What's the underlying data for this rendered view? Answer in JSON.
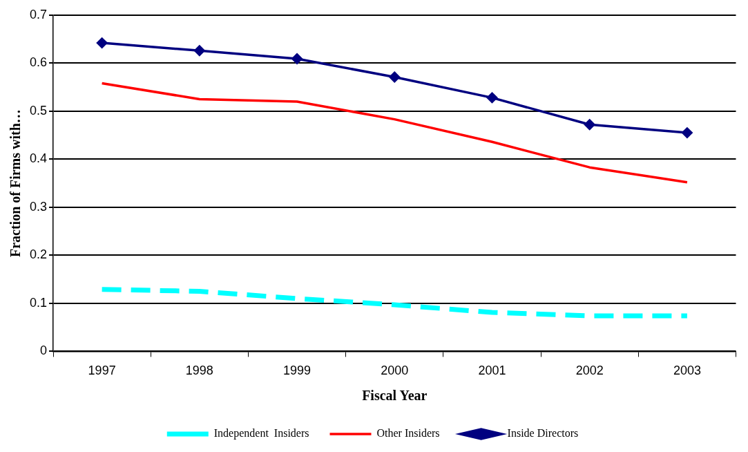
{
  "chart_data": {
    "type": "line",
    "xlabel": "Fiscal Year",
    "ylabel": "Fraction of Firms with…",
    "categories": [
      "1997",
      "1998",
      "1999",
      "2000",
      "2001",
      "2002",
      "2003"
    ],
    "series": [
      {
        "name": "Independent  Insiders",
        "color": "#00ffff",
        "line_style": "dashed",
        "marker": "none",
        "values": [
          0.129,
          0.125,
          0.11,
          0.097,
          0.081,
          0.074,
          0.074
        ]
      },
      {
        "name": "Other Insiders",
        "color": "#ff0000",
        "line_style": "solid",
        "marker": "none",
        "values": [
          0.558,
          0.525,
          0.52,
          0.483,
          0.436,
          0.383,
          0.352
        ]
      },
      {
        "name": "Inside Directors",
        "color": "#000080",
        "line_style": "solid",
        "marker": "diamond",
        "values": [
          0.642,
          0.626,
          0.609,
          0.571,
          0.528,
          0.472,
          0.455
        ]
      }
    ],
    "ylim": [
      0,
      0.7
    ],
    "yticks": [
      0,
      0.1,
      0.2,
      0.3,
      0.4,
      0.5,
      0.6,
      0.7
    ],
    "grid": "y",
    "legend": "bottom"
  }
}
